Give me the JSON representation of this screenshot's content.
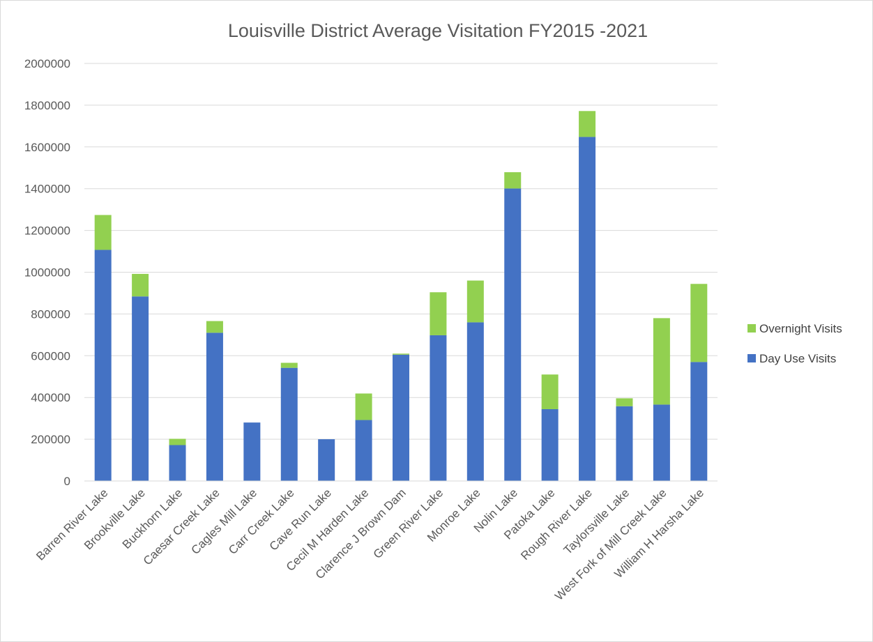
{
  "chart_data": {
    "type": "bar",
    "stacked": true,
    "title": "Louisville District Average Visitation FY2015 -2021",
    "xlabel": "",
    "ylabel": "",
    "ylim": [
      0,
      2000000
    ],
    "yticks": [
      0,
      200000,
      400000,
      600000,
      800000,
      1000000,
      1200000,
      1400000,
      1600000,
      1800000,
      2000000
    ],
    "grid": true,
    "legend_position": "right",
    "categories": [
      "Barren River Lake",
      "Brookville Lake",
      "Buckhorn Lake",
      "Caesar Creek Lake",
      "Cagles Mill Lake",
      "Carr Creek Lake",
      "Cave Run Lake",
      "Cecil M Harden Lake",
      "Clarence J Brown Dam",
      "Green River Lake",
      "Monroe Lake",
      "Nolin Lake",
      "Patoka Lake",
      "Rough River Lake",
      "Taylorsville Lake",
      "West Fork of Mill Creek Lake",
      "William H Harsha Lake"
    ],
    "series": [
      {
        "name": "Day Use Visits",
        "color": "#4472C4",
        "values": [
          1107000,
          884000,
          172000,
          710000,
          280000,
          542000,
          200000,
          292000,
          605000,
          698000,
          760000,
          1401000,
          344000,
          1648000,
          358000,
          366000,
          570000
        ]
      },
      {
        "name": "Overnight Visits",
        "color": "#92D050",
        "values": [
          167000,
          108000,
          30000,
          56000,
          0,
          24000,
          0,
          127000,
          5000,
          206000,
          200000,
          78000,
          166000,
          124000,
          38000,
          414000,
          374000
        ]
      }
    ]
  }
}
